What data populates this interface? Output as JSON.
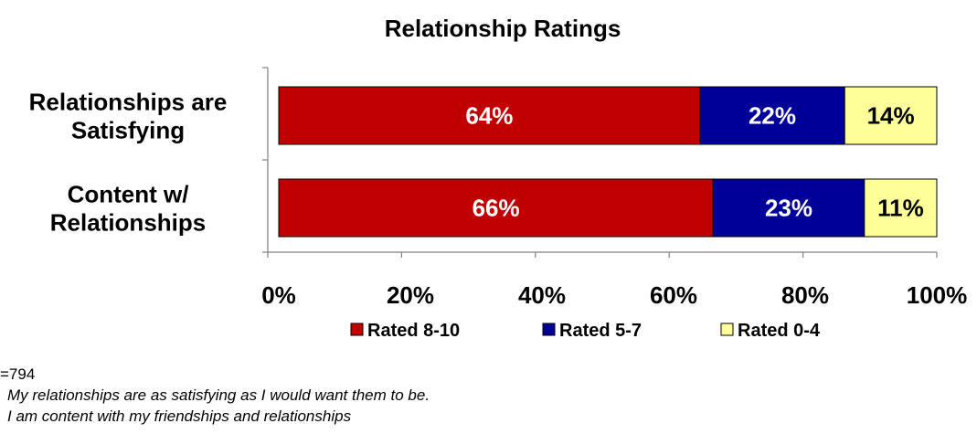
{
  "chart_data": {
    "type": "bar",
    "orientation": "horizontal",
    "stacked": true,
    "title": "Relationship Ratings",
    "categories": [
      "Relationships are Satisfying",
      "Content w/ Relationships"
    ],
    "category_lines": [
      [
        "Relationships are",
        "Satisfying"
      ],
      [
        "Content w/",
        "Relationships"
      ]
    ],
    "series": [
      {
        "name": "Rated 8-10",
        "color": "#c00000",
        "label_color": "#ffffff",
        "values": [
          64,
          66
        ],
        "labels": [
          "64%",
          "66%"
        ]
      },
      {
        "name": "Rated 5-7",
        "color": "#000099",
        "label_color": "#ffffff",
        "values": [
          22,
          23
        ],
        "labels": [
          "22%",
          "23%"
        ]
      },
      {
        "name": "Rated 0-4",
        "color": "#ffff99",
        "label_color": "#000000",
        "values": [
          14,
          11
        ],
        "labels": [
          "14%",
          "11%"
        ]
      }
    ],
    "xlim": [
      0,
      100
    ],
    "xticks": [
      0,
      20,
      40,
      60,
      80,
      100
    ],
    "xtick_labels": [
      "0%",
      "20%",
      "40%",
      "60%",
      "80%",
      "100%"
    ],
    "grid": false,
    "legend_position": "bottom"
  },
  "notes": {
    "sample": "=794",
    "lines": [
      "My relationships are as satisfying as I would want them to be.",
      "I am content with my friendships and relationships"
    ]
  }
}
